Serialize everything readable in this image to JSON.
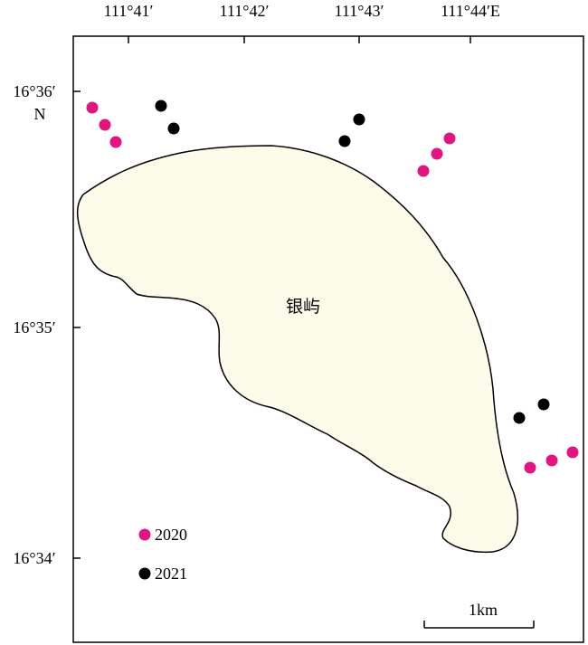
{
  "map": {
    "longitude_labels": [
      "111°41′",
      "111°42′",
      "111°43′",
      "111°44′E"
    ],
    "latitude_labels": [
      "16°36′",
      "16°35′",
      "16°34′"
    ],
    "north_label": "N",
    "island_name": "银屿",
    "scale_bar_label": "1km",
    "colors": {
      "island_fill": "#fdfbe9",
      "outline": "#000000",
      "series_2020": "#e0157f",
      "series_2021": "#000000"
    }
  },
  "legend": [
    {
      "label": "2020",
      "color": "#e0157f"
    },
    {
      "label": "2021",
      "color": "#000000"
    }
  ],
  "sites": {
    "2020": 9,
    "2021": 6
  }
}
